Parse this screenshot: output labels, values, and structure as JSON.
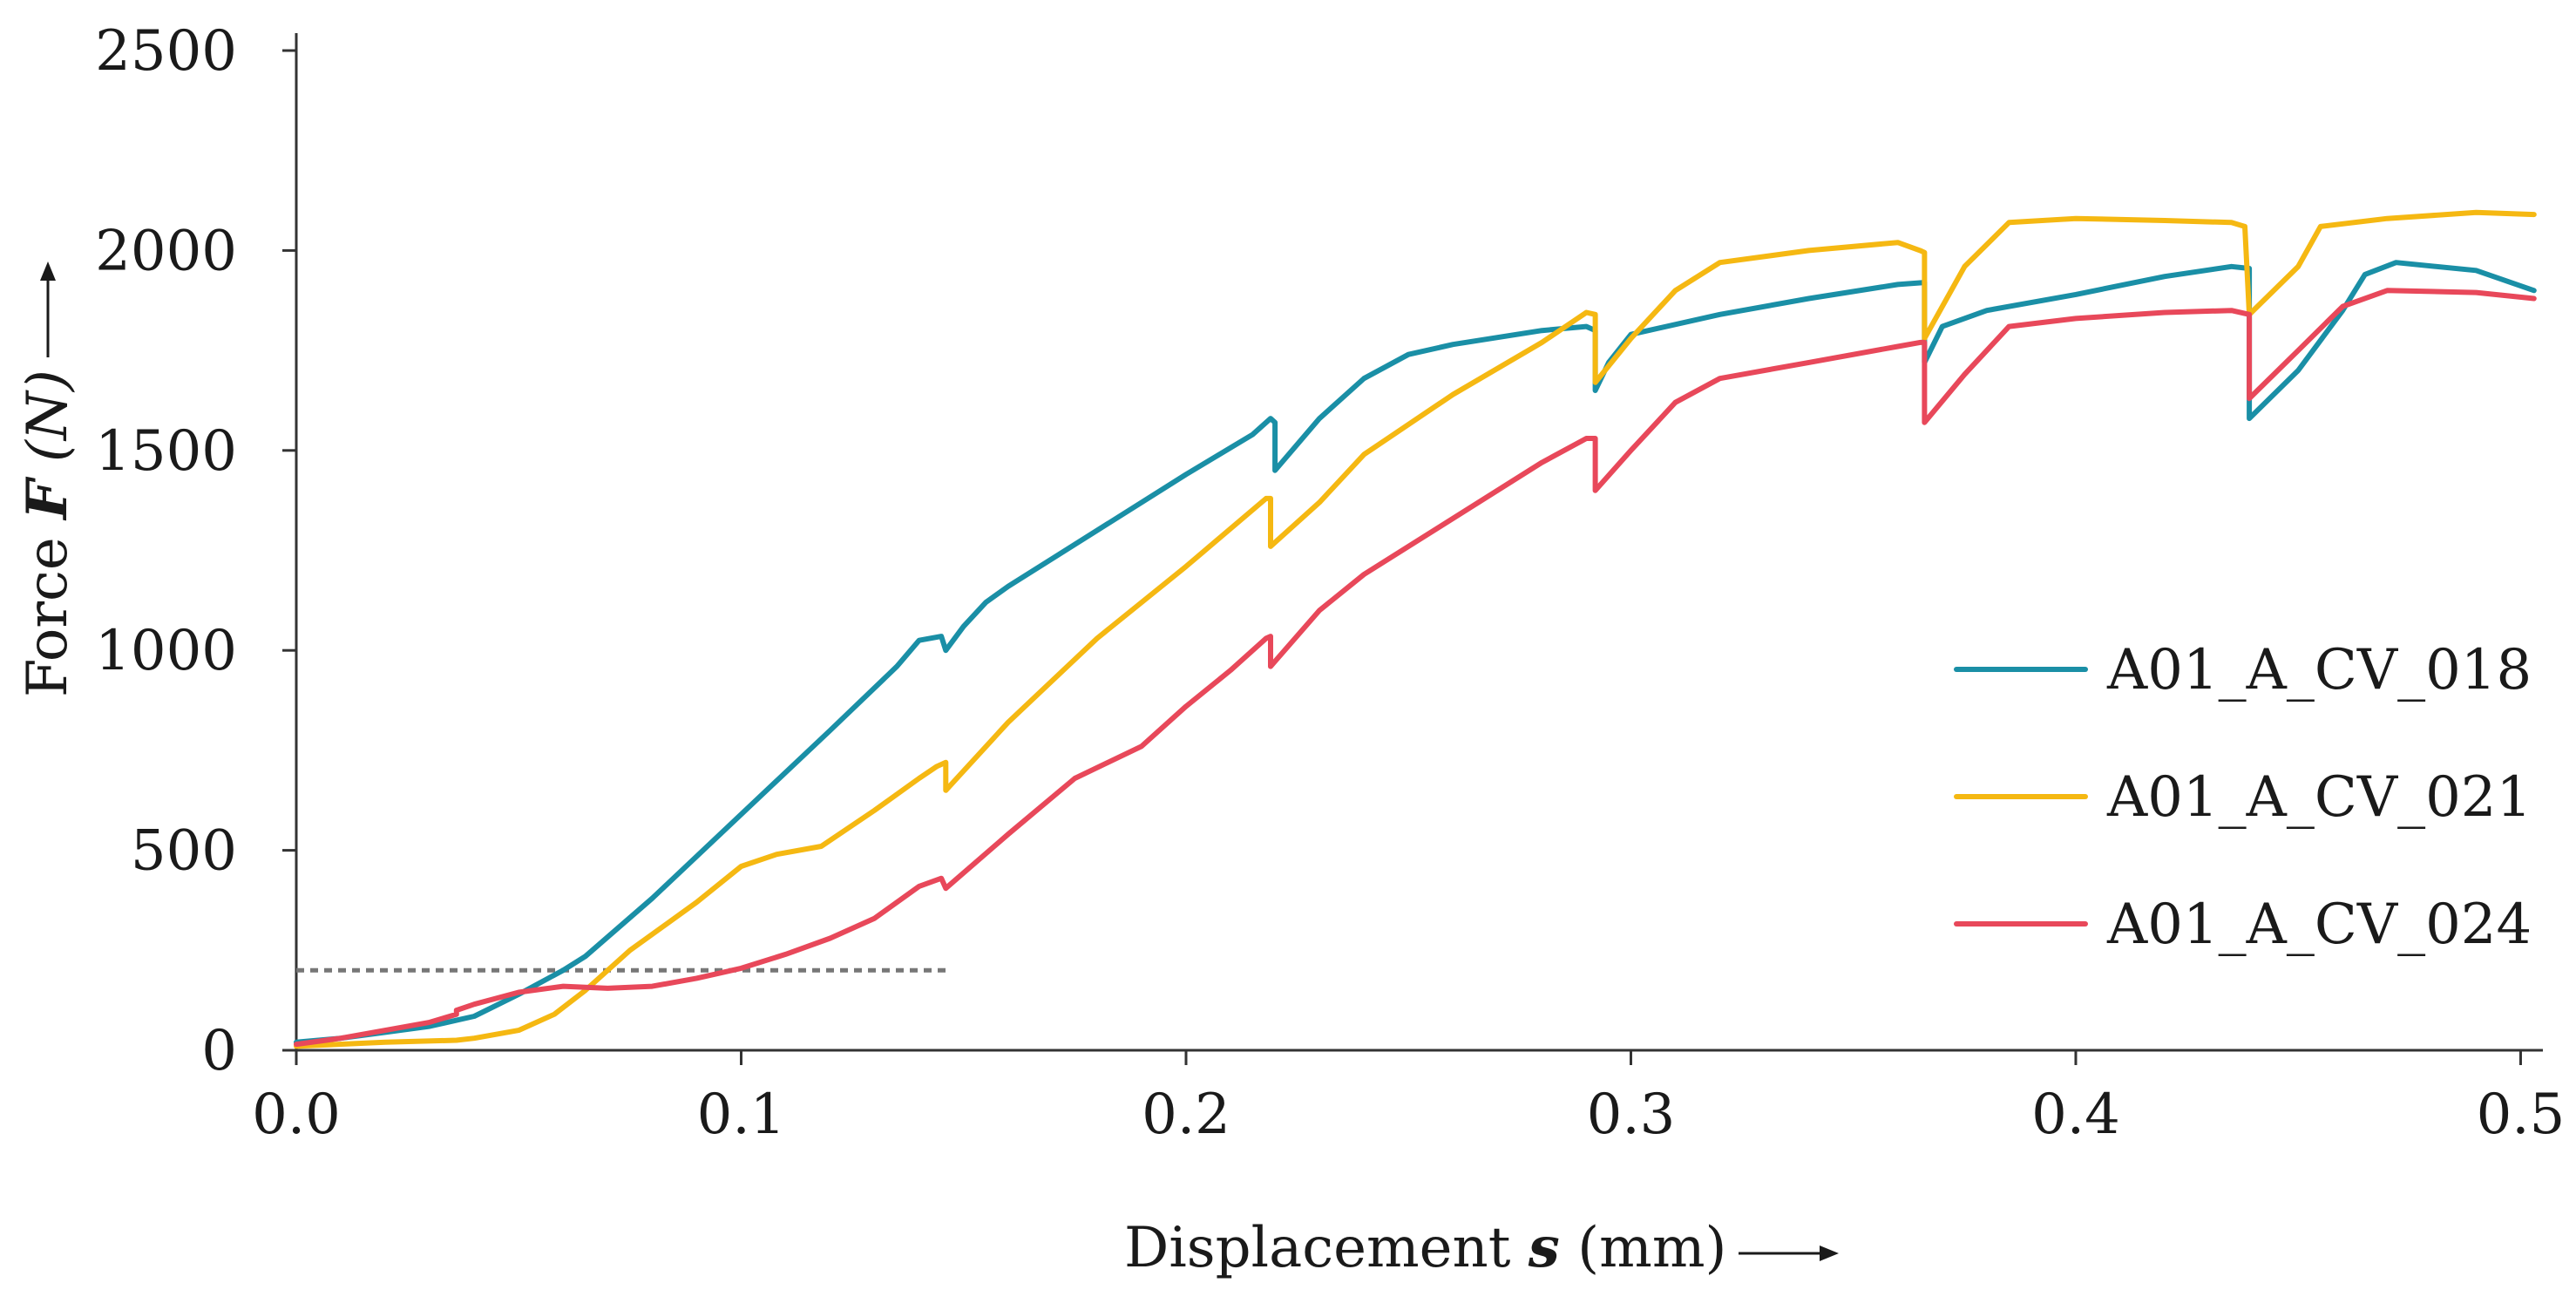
{
  "chart_data": {
    "type": "line",
    "title": "",
    "xlabel": {
      "prefix": "Displacement ",
      "symbol": "s",
      "suffix": " (mm)"
    },
    "ylabel": {
      "prefix": "Force ",
      "symbol": "F",
      "unit": "(N)"
    },
    "xlim": [
      0,
      0.505
    ],
    "ylim": [
      0,
      2500
    ],
    "xticks": [
      0.0,
      0.1,
      0.2,
      0.3,
      0.4,
      0.5
    ],
    "xtick_labels": [
      "0.0",
      "0.1",
      "0.2",
      "0.3",
      "0.4",
      "0.5"
    ],
    "yticks": [
      0,
      500,
      1000,
      1500,
      2000,
      2500
    ],
    "ytick_labels": [
      "0",
      "500",
      "1000",
      "1500",
      "2000",
      "2500"
    ],
    "grid": false,
    "legend_position": "right",
    "reference_line": {
      "y": 200,
      "x_start": 0,
      "x_end": 0.146,
      "style": "dotted",
      "color": "#777777"
    },
    "series": [
      {
        "name": "A01_A_CV_018",
        "color": "#1a8fa6",
        "points": [
          [
            0,
            20
          ],
          [
            0.01,
            30
          ],
          [
            0.02,
            45
          ],
          [
            0.03,
            60
          ],
          [
            0.036,
            75
          ],
          [
            0.04,
            85
          ],
          [
            0.05,
            140
          ],
          [
            0.06,
            200
          ],
          [
            0.065,
            235
          ],
          [
            0.08,
            380
          ],
          [
            0.1,
            590
          ],
          [
            0.12,
            800
          ],
          [
            0.135,
            960
          ],
          [
            0.14,
            1025
          ],
          [
            0.145,
            1035
          ],
          [
            0.146,
            1000
          ],
          [
            0.15,
            1060
          ],
          [
            0.155,
            1120
          ],
          [
            0.16,
            1160
          ],
          [
            0.18,
            1300
          ],
          [
            0.2,
            1440
          ],
          [
            0.215,
            1540
          ],
          [
            0.219,
            1580
          ],
          [
            0.22,
            1570
          ],
          [
            0.22,
            1450
          ],
          [
            0.23,
            1580
          ],
          [
            0.24,
            1680
          ],
          [
            0.25,
            1740
          ],
          [
            0.26,
            1765
          ],
          [
            0.28,
            1800
          ],
          [
            0.29,
            1810
          ],
          [
            0.292,
            1800
          ],
          [
            0.292,
            1650
          ],
          [
            0.295,
            1720
          ],
          [
            0.3,
            1790
          ],
          [
            0.32,
            1840
          ],
          [
            0.34,
            1880
          ],
          [
            0.36,
            1915
          ],
          [
            0.366,
            1920
          ],
          [
            0.366,
            1720
          ],
          [
            0.37,
            1810
          ],
          [
            0.38,
            1850
          ],
          [
            0.4,
            1890
          ],
          [
            0.42,
            1935
          ],
          [
            0.435,
            1960
          ],
          [
            0.439,
            1955
          ],
          [
            0.439,
            1580
          ],
          [
            0.45,
            1700
          ],
          [
            0.46,
            1850
          ],
          [
            0.465,
            1940
          ],
          [
            0.472,
            1970
          ],
          [
            0.49,
            1950
          ],
          [
            0.503,
            1900
          ]
        ]
      },
      {
        "name": "A01_A_CV_021",
        "color": "#f5b812",
        "points": [
          [
            0,
            10
          ],
          [
            0.02,
            20
          ],
          [
            0.036,
            25
          ],
          [
            0.04,
            30
          ],
          [
            0.05,
            50
          ],
          [
            0.058,
            90
          ],
          [
            0.065,
            150
          ],
          [
            0.075,
            250
          ],
          [
            0.09,
            370
          ],
          [
            0.1,
            460
          ],
          [
            0.108,
            490
          ],
          [
            0.118,
            510
          ],
          [
            0.13,
            600
          ],
          [
            0.14,
            680
          ],
          [
            0.144,
            710
          ],
          [
            0.146,
            720
          ],
          [
            0.146,
            650
          ],
          [
            0.16,
            820
          ],
          [
            0.18,
            1030
          ],
          [
            0.2,
            1210
          ],
          [
            0.218,
            1380
          ],
          [
            0.219,
            1380
          ],
          [
            0.219,
            1260
          ],
          [
            0.23,
            1370
          ],
          [
            0.24,
            1490
          ],
          [
            0.26,
            1640
          ],
          [
            0.28,
            1770
          ],
          [
            0.29,
            1845
          ],
          [
            0.292,
            1840
          ],
          [
            0.292,
            1670
          ],
          [
            0.3,
            1780
          ],
          [
            0.31,
            1900
          ],
          [
            0.32,
            1970
          ],
          [
            0.34,
            2000
          ],
          [
            0.36,
            2020
          ],
          [
            0.365,
            2000
          ],
          [
            0.366,
            1995
          ],
          [
            0.366,
            1780
          ],
          [
            0.375,
            1960
          ],
          [
            0.385,
            2070
          ],
          [
            0.4,
            2080
          ],
          [
            0.42,
            2075
          ],
          [
            0.435,
            2070
          ],
          [
            0.438,
            2060
          ],
          [
            0.439,
            1840
          ],
          [
            0.45,
            1960
          ],
          [
            0.455,
            2060
          ],
          [
            0.47,
            2080
          ],
          [
            0.49,
            2095
          ],
          [
            0.503,
            2090
          ]
        ]
      },
      {
        "name": "A01_A_CV_024",
        "color": "#e8485a",
        "points": [
          [
            0,
            15
          ],
          [
            0.01,
            30
          ],
          [
            0.02,
            50
          ],
          [
            0.03,
            70
          ],
          [
            0.036,
            90
          ],
          [
            0.036,
            100
          ],
          [
            0.04,
            115
          ],
          [
            0.05,
            145
          ],
          [
            0.06,
            160
          ],
          [
            0.07,
            155
          ],
          [
            0.08,
            160
          ],
          [
            0.09,
            180
          ],
          [
            0.1,
            205
          ],
          [
            0.11,
            240
          ],
          [
            0.12,
            280
          ],
          [
            0.13,
            330
          ],
          [
            0.14,
            410
          ],
          [
            0.145,
            430
          ],
          [
            0.146,
            405
          ],
          [
            0.16,
            540
          ],
          [
            0.175,
            680
          ],
          [
            0.19,
            760
          ],
          [
            0.2,
            860
          ],
          [
            0.21,
            950
          ],
          [
            0.218,
            1030
          ],
          [
            0.219,
            1035
          ],
          [
            0.219,
            960
          ],
          [
            0.23,
            1100
          ],
          [
            0.24,
            1190
          ],
          [
            0.26,
            1330
          ],
          [
            0.28,
            1470
          ],
          [
            0.29,
            1530
          ],
          [
            0.292,
            1530
          ],
          [
            0.292,
            1400
          ],
          [
            0.3,
            1500
          ],
          [
            0.31,
            1620
          ],
          [
            0.32,
            1680
          ],
          [
            0.34,
            1720
          ],
          [
            0.36,
            1760
          ],
          [
            0.365,
            1770
          ],
          [
            0.366,
            1770
          ],
          [
            0.366,
            1570
          ],
          [
            0.375,
            1690
          ],
          [
            0.385,
            1810
          ],
          [
            0.4,
            1830
          ],
          [
            0.42,
            1845
          ],
          [
            0.435,
            1850
          ],
          [
            0.439,
            1840
          ],
          [
            0.439,
            1630
          ],
          [
            0.45,
            1750
          ],
          [
            0.46,
            1860
          ],
          [
            0.47,
            1900
          ],
          [
            0.49,
            1895
          ],
          [
            0.503,
            1880
          ]
        ]
      }
    ]
  }
}
